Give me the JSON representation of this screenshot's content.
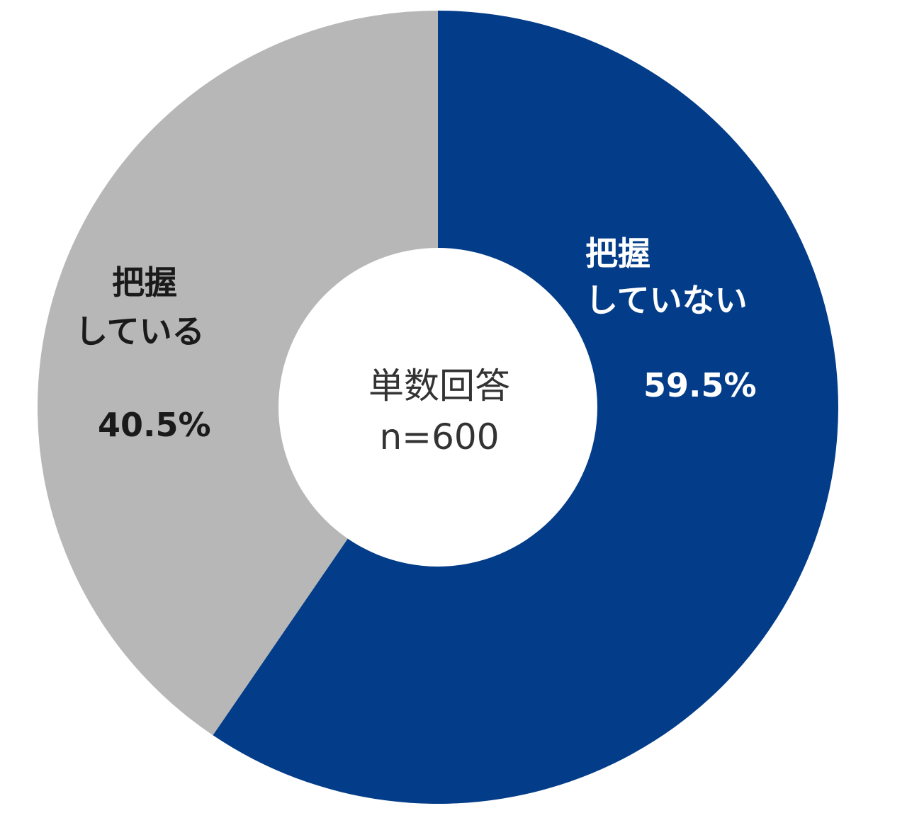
{
  "chart_data": {
    "type": "pie",
    "donut": true,
    "slices": [
      {
        "label_line1": "把握",
        "label_line2": "していない",
        "value": 59.5,
        "value_label": "59.5%",
        "color": "#033c88",
        "label_color": "#ffffff"
      },
      {
        "label_line1": "把握",
        "label_line2": "している",
        "value": 40.5,
        "value_label": "40.5%",
        "color": "#b7b7b7",
        "label_color": "#1a1a1a"
      }
    ],
    "center": {
      "line1": "単数回答",
      "line2": "n=600"
    }
  }
}
